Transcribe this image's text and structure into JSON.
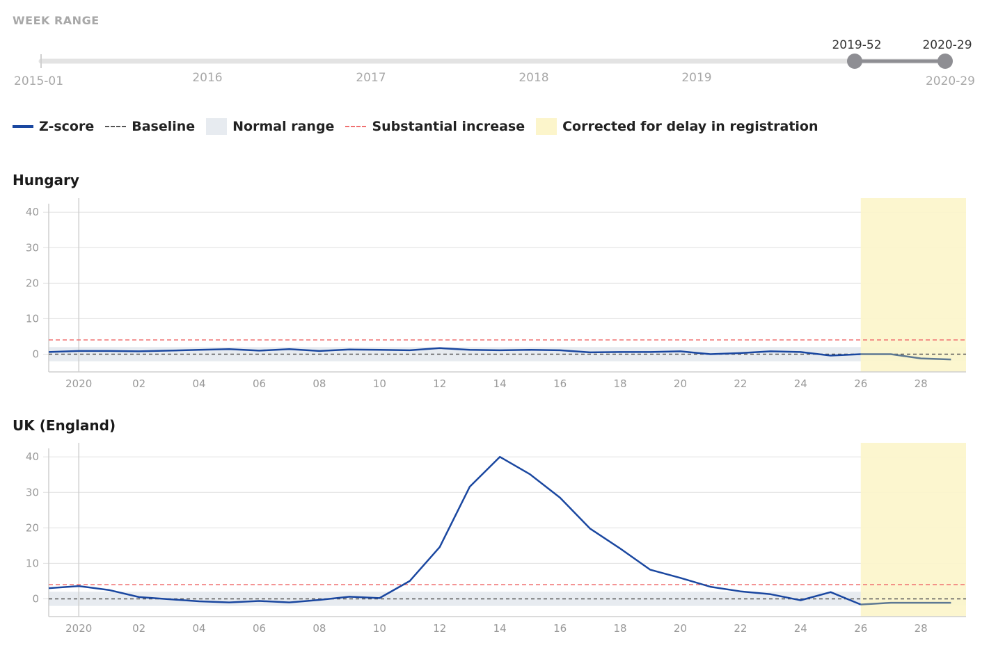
{
  "week_range": {
    "title": "WEEK RANGE",
    "start_label": "2015-01",
    "end_label": "2020-29",
    "year_ticks": [
      "2016",
      "2017",
      "2018",
      "2019"
    ],
    "handle_low_label": "2019-52",
    "handle_high_label": "2020-29",
    "track_color": "#e3e3e3",
    "selected_color": "#8e8e93"
  },
  "legend": {
    "zscore": "Z-score",
    "baseline": "Baseline",
    "normal_range": "Normal range",
    "substantial_increase": "Substantial increase",
    "corrected": "Corrected for delay in registration"
  },
  "colors": {
    "zscore": "#1a47a0",
    "zscore_corrected": "#5d7892",
    "baseline": "#555555",
    "substantial": "#f07070",
    "normal_range": "#e7ebf0",
    "corrected_band": "#fcf5cb",
    "grid": "#e0e0e0",
    "axis_text": "#999999"
  },
  "chart_data": [
    {
      "type": "line",
      "title": "Hungary",
      "xlabel": "",
      "ylabel": "",
      "x_ticks": [
        {
          "week": 0,
          "label": "2020"
        },
        {
          "week": 2,
          "label": "02"
        },
        {
          "week": 4,
          "label": "04"
        },
        {
          "week": 6,
          "label": "06"
        },
        {
          "week": 8,
          "label": "08"
        },
        {
          "week": 10,
          "label": "10"
        },
        {
          "week": 12,
          "label": "12"
        },
        {
          "week": 14,
          "label": "14"
        },
        {
          "week": 16,
          "label": "16"
        },
        {
          "week": 18,
          "label": "18"
        },
        {
          "week": 20,
          "label": "20"
        },
        {
          "week": 22,
          "label": "22"
        },
        {
          "week": 24,
          "label": "24"
        },
        {
          "week": 26,
          "label": "26"
        },
        {
          "week": 28,
          "label": "28"
        }
      ],
      "y_ticks": [
        0,
        10,
        20,
        30,
        40
      ],
      "xlim": [
        -1,
        29.5
      ],
      "ylim": [
        -5,
        42
      ],
      "baseline": 0,
      "substantial_increase": 4,
      "normal_range": [
        -2,
        2
      ],
      "corrected_from_week": 26,
      "series": [
        {
          "name": "Z-score",
          "x": [
            -1,
            0,
            1,
            2,
            3,
            4,
            5,
            6,
            7,
            8,
            9,
            10,
            11,
            12,
            13,
            14,
            15,
            16,
            17,
            18,
            19,
            20,
            21,
            22,
            23,
            24,
            25,
            26,
            27,
            28,
            29
          ],
          "y": [
            0.6,
            0.9,
            0.9,
            0.8,
            1.0,
            1.2,
            1.4,
            1.0,
            1.4,
            0.9,
            1.3,
            1.2,
            1.1,
            1.7,
            1.2,
            1.1,
            1.2,
            1.1,
            0.5,
            0.6,
            0.6,
            0.8,
            0.0,
            0.3,
            0.8,
            0.6,
            -0.4,
            0.0,
            0.0,
            -1.2,
            -1.5
          ]
        }
      ]
    },
    {
      "type": "line",
      "title": "UK (England)",
      "xlabel": "",
      "ylabel": "",
      "x_ticks": [
        {
          "week": 0,
          "label": "2020"
        },
        {
          "week": 2,
          "label": "02"
        },
        {
          "week": 4,
          "label": "04"
        },
        {
          "week": 6,
          "label": "06"
        },
        {
          "week": 8,
          "label": "08"
        },
        {
          "week": 10,
          "label": "10"
        },
        {
          "week": 12,
          "label": "12"
        },
        {
          "week": 14,
          "label": "14"
        },
        {
          "week": 16,
          "label": "16"
        },
        {
          "week": 18,
          "label": "18"
        },
        {
          "week": 20,
          "label": "20"
        },
        {
          "week": 22,
          "label": "22"
        },
        {
          "week": 24,
          "label": "24"
        },
        {
          "week": 26,
          "label": "26"
        },
        {
          "week": 28,
          "label": "28"
        }
      ],
      "y_ticks": [
        0,
        10,
        20,
        30,
        40
      ],
      "xlim": [
        -1,
        29.5
      ],
      "ylim": [
        -5,
        42
      ],
      "baseline": 0,
      "substantial_increase": 4,
      "normal_range": [
        -2,
        2
      ],
      "corrected_from_week": 26,
      "series": [
        {
          "name": "Z-score",
          "x": [
            -1,
            0,
            1,
            2,
            3,
            4,
            5,
            6,
            7,
            8,
            9,
            10,
            11,
            12,
            13,
            14,
            15,
            16,
            17,
            18,
            19,
            20,
            21,
            22,
            23,
            24,
            25,
            26,
            27,
            28,
            29
          ],
          "y": [
            3.0,
            3.6,
            2.5,
            0.5,
            -0.1,
            -0.7,
            -1.0,
            -0.6,
            -1.0,
            -0.3,
            0.6,
            0.2,
            5.0,
            14.6,
            31.6,
            40.0,
            35.1,
            28.5,
            19.8,
            14.2,
            8.2,
            5.9,
            3.4,
            2.1,
            1.3,
            -0.4,
            1.9,
            -1.6,
            -1.1,
            -1.1,
            -1.1
          ]
        }
      ]
    }
  ]
}
